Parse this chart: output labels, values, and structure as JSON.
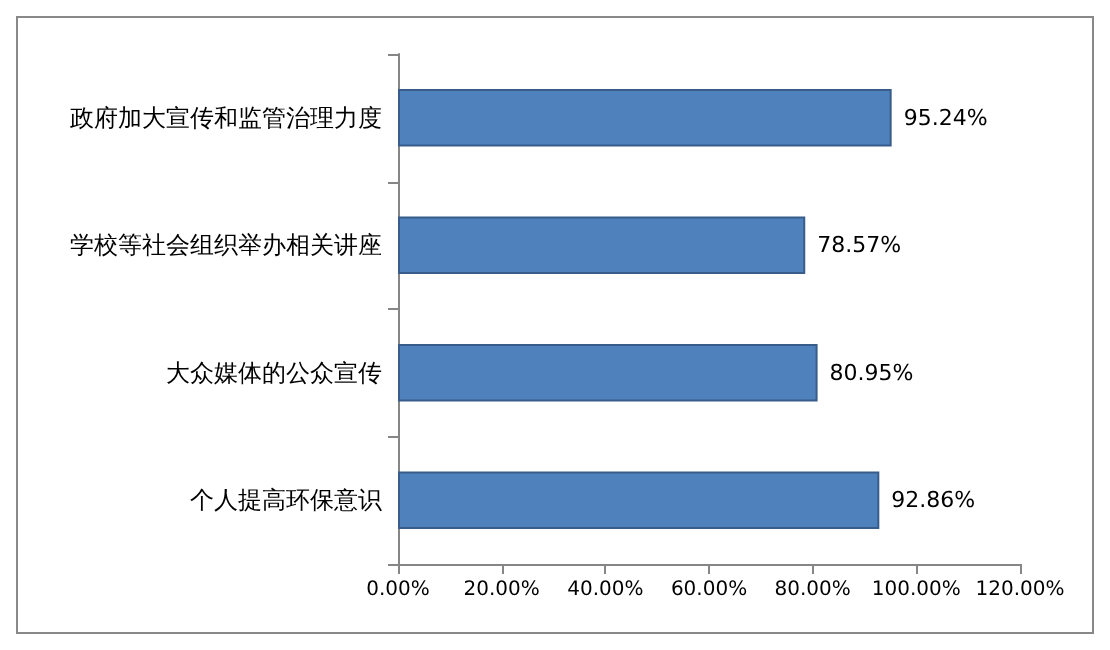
{
  "chart_data": {
    "type": "bar",
    "orientation": "horizontal",
    "categories": [
      "政府加大宣传和监管治理力度",
      "学校等社会组织举办相关讲座",
      "大众媒体的公众宣传",
      "个人提高环保意识"
    ],
    "values": [
      95.24,
      78.57,
      80.95,
      92.86
    ],
    "value_labels": [
      "95.24%",
      "78.57%",
      "80.95%",
      "92.86%"
    ],
    "color": "#4f81bd",
    "xlim": [
      0,
      120
    ],
    "xticks": [
      {
        "value": 0,
        "label": "0.00%"
      },
      {
        "value": 20,
        "label": "20.00%"
      },
      {
        "value": 40,
        "label": "40.00%"
      },
      {
        "value": 60,
        "label": "60.00%"
      },
      {
        "value": 80,
        "label": "80.00%"
      },
      {
        "value": 100,
        "label": "100.00%"
      },
      {
        "value": 120,
        "label": "120.00%"
      }
    ],
    "grid": false
  }
}
